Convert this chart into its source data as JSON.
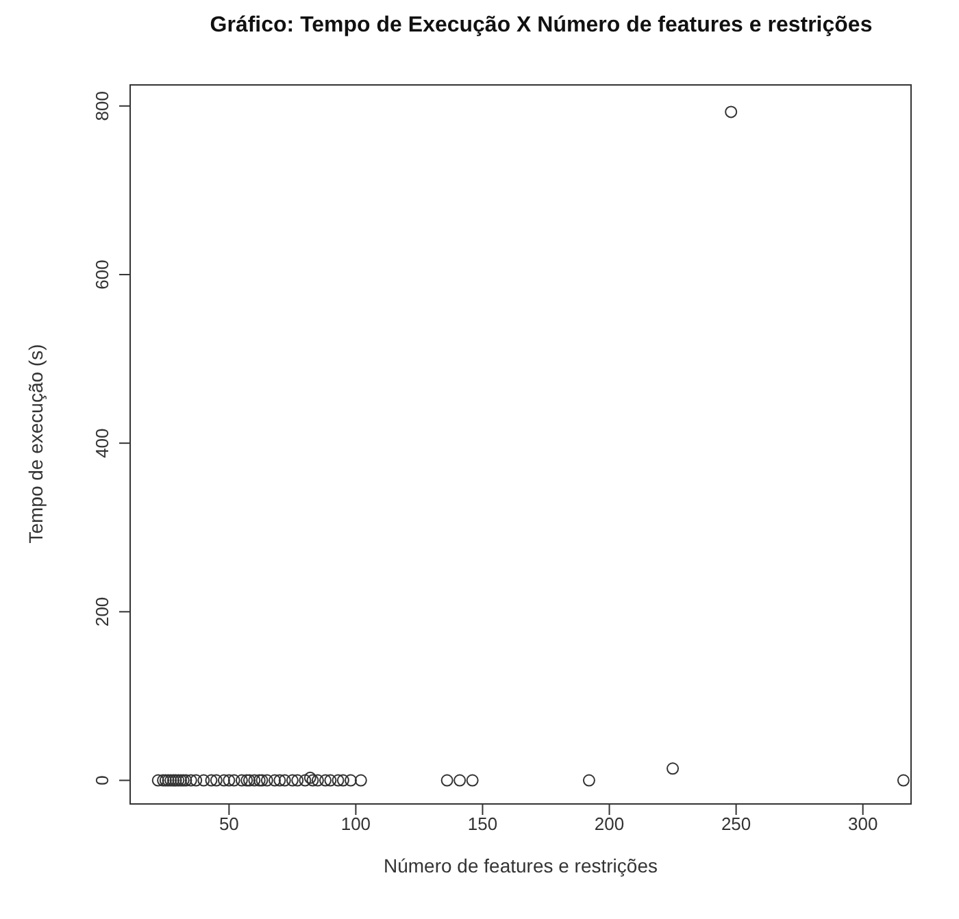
{
  "chart_data": {
    "type": "scatter",
    "title": "Gráfico: Tempo de Execução X Número de features e restrições",
    "xlabel": "Número de features e restrições",
    "ylabel": "Tempo de execução (s)",
    "x": [
      22,
      24,
      25,
      26,
      27,
      28,
      29,
      30,
      31,
      32,
      33,
      35,
      37,
      40,
      43,
      45,
      48,
      50,
      52,
      55,
      57,
      58,
      60,
      62,
      63,
      65,
      68,
      70,
      72,
      75,
      77,
      80,
      82,
      83,
      85,
      88,
      90,
      93,
      95,
      98,
      102,
      136,
      141,
      146,
      192,
      225,
      248,
      316
    ],
    "values": [
      0,
      0,
      0,
      0,
      0,
      0,
      0,
      0,
      0,
      0,
      0,
      0,
      0,
      0,
      0,
      0,
      0,
      0,
      0,
      0,
      0,
      0,
      0,
      0,
      0,
      0,
      0,
      0,
      0,
      0,
      0,
      0,
      3,
      0,
      0,
      0,
      0,
      0,
      0,
      0,
      0,
      0,
      0,
      0,
      0,
      14,
      793,
      0
    ],
    "color": "#333333",
    "marker": "circle",
    "grid": false,
    "legend": false,
    "xlim": [
      11,
      319
    ],
    "xticks": [
      50,
      100,
      150,
      200,
      250,
      300
    ],
    "ylim": [
      -28,
      825
    ],
    "yticks": [
      0,
      200,
      400,
      600,
      800
    ]
  }
}
